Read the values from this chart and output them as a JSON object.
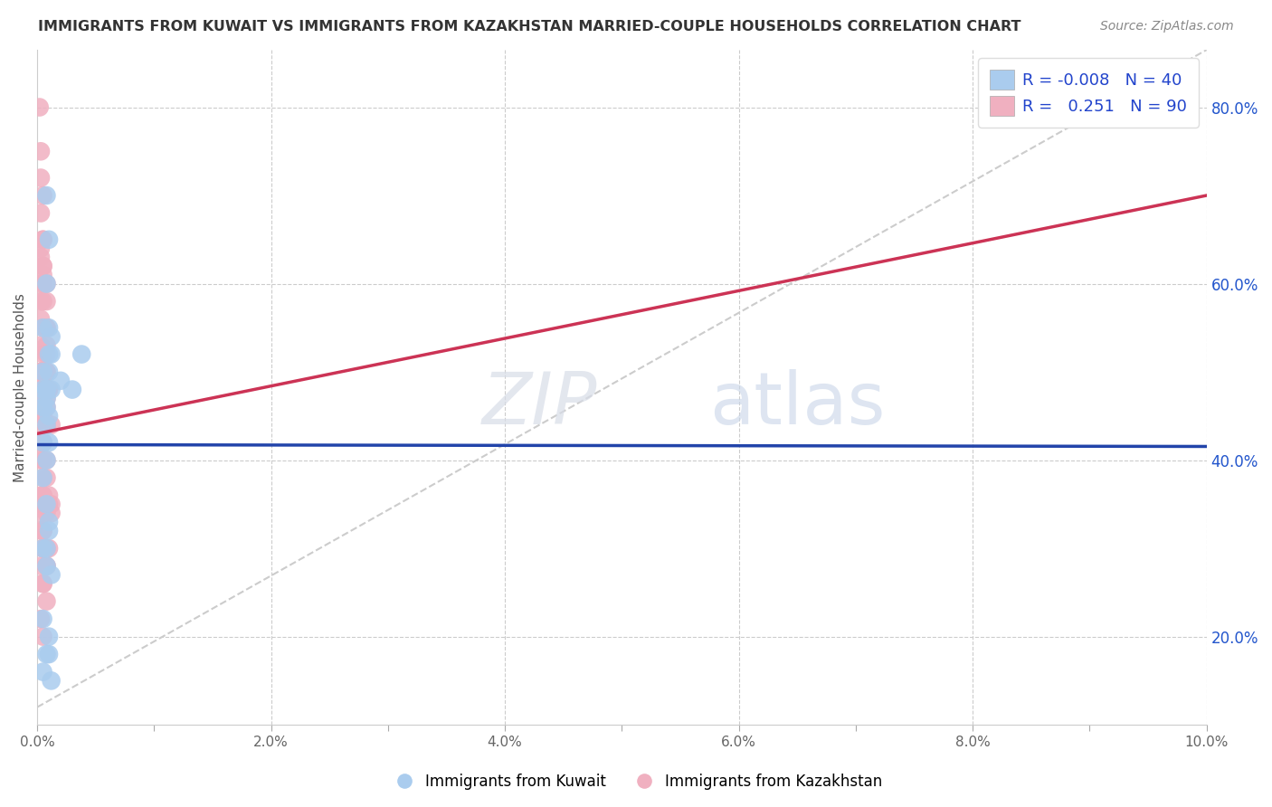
{
  "title": "IMMIGRANTS FROM KUWAIT VS IMMIGRANTS FROM KAZAKHSTAN MARRIED-COUPLE HOUSEHOLDS CORRELATION CHART",
  "source": "Source: ZipAtlas.com",
  "ylabel": "Married-couple Households",
  "legend_kuwait": "Immigrants from Kuwait",
  "legend_kazakhstan": "Immigrants from Kazakhstan",
  "R_kuwait": "-0.008",
  "N_kuwait": "40",
  "R_kazakhstan": "0.251",
  "N_kazakhstan": "90",
  "background_color": "#ffffff",
  "grid_color": "#cccccc",
  "kuwait_color": "#aaccee",
  "kazakhstan_color": "#f0b0c0",
  "kuwait_line_color": "#2244aa",
  "kazakhstan_line_color": "#cc3355",
  "trend_dashed_color": "#cccccc",
  "kuwait_scatter_x": [
    0.0005,
    0.0008,
    0.001,
    0.0005,
    0.0008,
    0.001,
    0.0012,
    0.0008,
    0.0005,
    0.001,
    0.0008,
    0.0005,
    0.001,
    0.0008,
    0.0012,
    0.0008,
    0.001,
    0.0005,
    0.0008,
    0.001,
    0.0005,
    0.0008,
    0.0012,
    0.001,
    0.0008,
    0.0005,
    0.001,
    0.0008,
    0.0005,
    0.0012,
    0.0008,
    0.001,
    0.0005,
    0.0008,
    0.001,
    0.0012,
    0.0008,
    0.002,
    0.003,
    0.0038
  ],
  "kuwait_scatter_y": [
    0.48,
    0.7,
    0.65,
    0.55,
    0.6,
    0.5,
    0.52,
    0.48,
    0.46,
    0.55,
    0.48,
    0.5,
    0.52,
    0.47,
    0.54,
    0.44,
    0.42,
    0.38,
    0.35,
    0.33,
    0.3,
    0.28,
    0.27,
    0.32,
    0.3,
    0.22,
    0.2,
    0.18,
    0.16,
    0.48,
    0.46,
    0.45,
    0.42,
    0.4,
    0.18,
    0.15,
    0.48,
    0.49,
    0.48,
    0.52
  ],
  "kazakhstan_scatter_x": [
    0.0002,
    0.0003,
    0.0003,
    0.0005,
    0.0003,
    0.0005,
    0.0005,
    0.0003,
    0.0003,
    0.0005,
    0.0003,
    0.0005,
    0.0005,
    0.0003,
    0.0005,
    0.0008,
    0.0005,
    0.0003,
    0.0005,
    0.0008,
    0.0005,
    0.0008,
    0.0003,
    0.0005,
    0.0003,
    0.0005,
    0.0008,
    0.0005,
    0.0003,
    0.0008,
    0.0005,
    0.0003,
    0.0005,
    0.0008,
    0.001,
    0.0005,
    0.0008,
    0.0003,
    0.0005,
    0.0008,
    0.0003,
    0.0005,
    0.0008,
    0.0005,
    0.0003,
    0.001,
    0.0008,
    0.0005,
    0.0012,
    0.0003,
    0.0003,
    0.0005,
    0.0003,
    0.0005,
    0.0008,
    0.0005,
    0.0003,
    0.0005,
    0.0008,
    0.0005,
    0.0003,
    0.0005,
    0.0008,
    0.0003,
    0.0005,
    0.0008,
    0.0005,
    0.001,
    0.0005,
    0.0008,
    0.0003,
    0.0005,
    0.0008,
    0.0005,
    0.0003,
    0.0008,
    0.0005,
    0.001,
    0.0008,
    0.0012,
    0.0005,
    0.0008,
    0.0003,
    0.0005,
    0.001,
    0.0012,
    0.0008,
    0.0005,
    0.0003,
    0.0008
  ],
  "kazakhstan_scatter_y": [
    0.8,
    0.75,
    0.72,
    0.7,
    0.68,
    0.65,
    0.62,
    0.6,
    0.58,
    0.65,
    0.63,
    0.61,
    0.58,
    0.56,
    0.6,
    0.58,
    0.55,
    0.53,
    0.5,
    0.52,
    0.5,
    0.55,
    0.5,
    0.48,
    0.5,
    0.52,
    0.53,
    0.48,
    0.47,
    0.5,
    0.48,
    0.46,
    0.48,
    0.5,
    0.48,
    0.46,
    0.44,
    0.5,
    0.48,
    0.47,
    0.48,
    0.46,
    0.44,
    0.42,
    0.5,
    0.48,
    0.46,
    0.45,
    0.44,
    0.42,
    0.4,
    0.42,
    0.44,
    0.42,
    0.4,
    0.38,
    0.36,
    0.4,
    0.38,
    0.36,
    0.34,
    0.36,
    0.35,
    0.32,
    0.3,
    0.34,
    0.32,
    0.36,
    0.35,
    0.3,
    0.28,
    0.3,
    0.28,
    0.26,
    0.5,
    0.48,
    0.32,
    0.3,
    0.28,
    0.35,
    0.26,
    0.24,
    0.22,
    0.2,
    0.35,
    0.34,
    0.6,
    0.62,
    0.64,
    0.55
  ],
  "xlim": [
    0.0,
    0.1
  ],
  "ylim": [
    0.1,
    0.865
  ],
  "yticks": [
    0.2,
    0.4,
    0.6,
    0.8
  ],
  "xticks": [
    0.0,
    0.01,
    0.02,
    0.03,
    0.04,
    0.05,
    0.06,
    0.07,
    0.08,
    0.09,
    0.1
  ],
  "xtick_labels": [
    "0.0%",
    "",
    "2.0%",
    "",
    "4.0%",
    "",
    "6.0%",
    "",
    "8.0%",
    "",
    "10.0%"
  ]
}
